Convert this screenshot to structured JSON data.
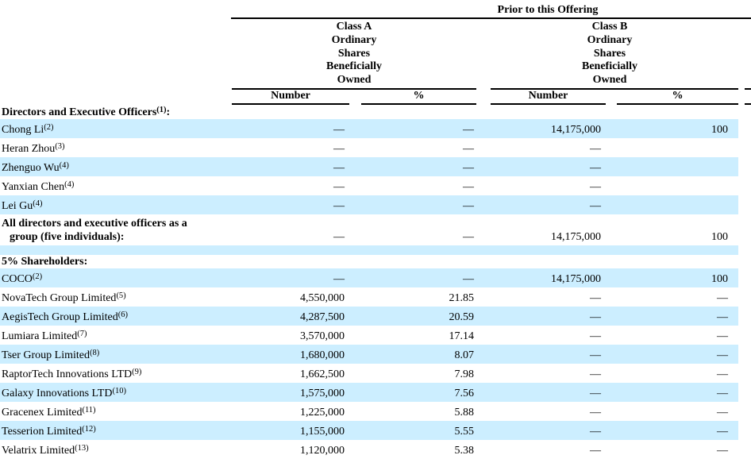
{
  "table": {
    "header": {
      "group_label": "Prior to this Offering",
      "col_groups": [
        {
          "label_lines": [
            "Class A",
            "Ordinary",
            "Shares",
            "Beneficially",
            "Owned"
          ],
          "columns": [
            "Number",
            "%"
          ]
        },
        {
          "label_lines": [
            "Class B",
            "Ordinary",
            "Shares",
            "Beneficially",
            "Owned"
          ],
          "columns": [
            "Number",
            "%"
          ]
        }
      ]
    },
    "colors": {
      "row_highlight": "#cceeff",
      "text": "#000000",
      "rule": "#000000"
    },
    "rows": [
      {
        "kind": "section",
        "name": "Directors and Executive Officers",
        "sup": "(1)",
        "suffix": ":",
        "bg": "white",
        "values": [
          "",
          "",
          "",
          ""
        ]
      },
      {
        "kind": "data",
        "name": "Chong Li",
        "sup": "(2)",
        "bg": "blue",
        "values": [
          "—",
          "—",
          "14,175,000",
          "100"
        ]
      },
      {
        "kind": "data",
        "name": "Heran Zhou",
        "sup": "(3)",
        "bg": "white",
        "values": [
          "—",
          "—",
          "—",
          ""
        ]
      },
      {
        "kind": "data",
        "name": "Zhenguo Wu",
        "sup": "(4)",
        "bg": "blue",
        "values": [
          "—",
          "—",
          "—",
          ""
        ]
      },
      {
        "kind": "data",
        "name": "Yanxian Chen",
        "sup": "(4)",
        "bg": "white",
        "values": [
          "—",
          "—",
          "—",
          ""
        ]
      },
      {
        "kind": "data",
        "name": "Lei Gu",
        "sup": "(4)",
        "bg": "blue",
        "values": [
          "—",
          "—",
          "—",
          ""
        ]
      },
      {
        "kind": "data2",
        "name": "All directors and executive officers as a",
        "name_line2": "group (five individuals):",
        "bg": "white",
        "values": [
          "—",
          "—",
          "14,175,000",
          "100"
        ]
      },
      {
        "kind": "spacer",
        "bg": "blue",
        "values": [
          "",
          "",
          "",
          ""
        ]
      },
      {
        "kind": "section",
        "name": "5% Shareholders",
        "suffix": ":",
        "bg": "white",
        "values": [
          "",
          "",
          "",
          ""
        ]
      },
      {
        "kind": "data",
        "name": "COCO",
        "sup": "(2)",
        "bg": "blue",
        "values": [
          "—",
          "—",
          "14,175,000",
          "100"
        ]
      },
      {
        "kind": "data",
        "name": "NovaTech Group Limited",
        "sup": "(5)",
        "bg": "white",
        "values": [
          "4,550,000",
          "21.85",
          "—",
          "—"
        ]
      },
      {
        "kind": "data",
        "name": "AegisTech Group Limited",
        "sup": "(6)",
        "bg": "blue",
        "values": [
          "4,287,500",
          "20.59",
          "—",
          "—"
        ]
      },
      {
        "kind": "data",
        "name": "Lumiara Limited",
        "sup": "(7)",
        "bg": "white",
        "values": [
          "3,570,000",
          "17.14",
          "—",
          "—"
        ]
      },
      {
        "kind": "data",
        "name": "Tser Group Limited",
        "sup": "(8)",
        "bg": "blue",
        "values": [
          "1,680,000",
          "8.07",
          "—",
          "—"
        ]
      },
      {
        "kind": "data",
        "name": "RaptorTech Innovations LTD",
        "sup": "(9)",
        "bg": "white",
        "values": [
          "1,662,500",
          "7.98",
          "—",
          "—"
        ]
      },
      {
        "kind": "data",
        "name": "Galaxy Innovations LTD",
        "sup": "(10)",
        "bg": "blue",
        "values": [
          "1,575,000",
          "7.56",
          "—",
          "—"
        ]
      },
      {
        "kind": "data",
        "name": "Gracenex Limited",
        "sup": "(11)",
        "bg": "white",
        "values": [
          "1,225,000",
          "5.88",
          "—",
          "—"
        ]
      },
      {
        "kind": "data",
        "name": "Tesserion Limited",
        "sup": "(12)",
        "bg": "blue",
        "values": [
          "1,155,000",
          "5.55",
          "—",
          "—"
        ]
      },
      {
        "kind": "data",
        "name": "Velatrix Limited",
        "sup": "(13)",
        "bg": "white",
        "values": [
          "1,120,000",
          "5.38",
          "—",
          "—"
        ]
      }
    ]
  }
}
